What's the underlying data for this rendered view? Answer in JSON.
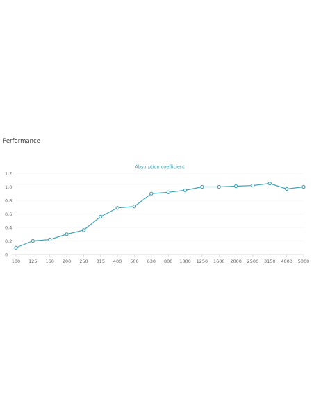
{
  "section": {
    "title": "Performance"
  },
  "chart_data": {
    "type": "line",
    "legend": [
      "Absorption coefficient"
    ],
    "categories": [
      "100",
      "125",
      "160",
      "200",
      "250",
      "315",
      "400",
      "500",
      "630",
      "800",
      "1000",
      "1250",
      "1600",
      "2000",
      "2500",
      "3150",
      "4000",
      "5000"
    ],
    "series": [
      {
        "name": "Absorption coefficient",
        "values": [
          0.1,
          0.2,
          0.22,
          0.3,
          0.36,
          0.56,
          0.69,
          0.71,
          0.9,
          0.92,
          0.95,
          1.0,
          1.0,
          1.01,
          1.02,
          1.05,
          0.97,
          1.0
        ]
      }
    ],
    "ylim": [
      0,
      1.2
    ],
    "yticks": [
      "0",
      "0.2",
      "0.4",
      "0.6",
      "0.8",
      "1.0",
      "1.2"
    ],
    "legend_position": "top-center",
    "grid": true,
    "colors": {
      "line": "#3fa3b5",
      "marker_fill": "#ffffff",
      "grid": "#eeeeee",
      "axis": "#cccccc"
    }
  }
}
